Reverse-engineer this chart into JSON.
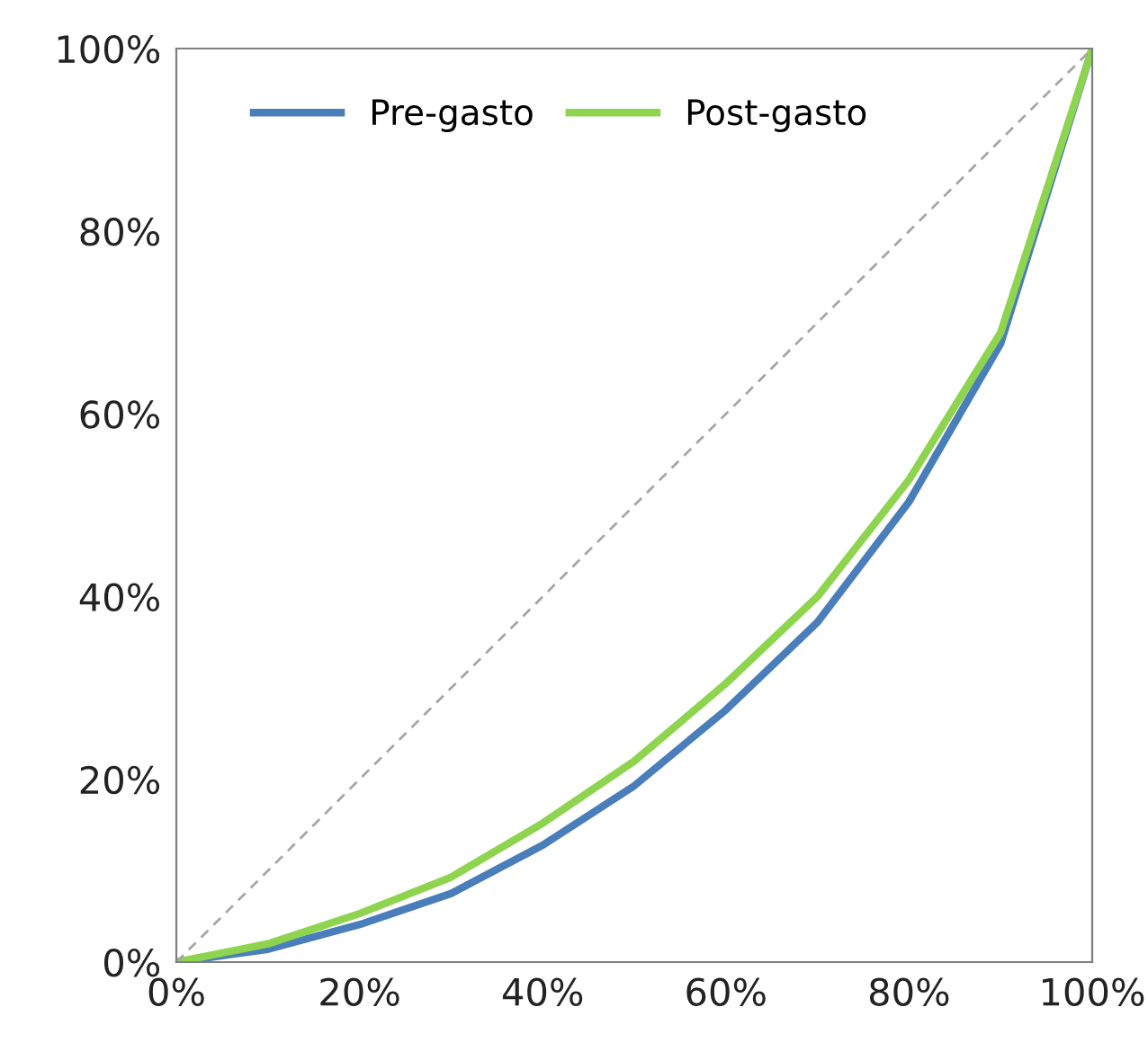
{
  "chart_data": {
    "type": "line",
    "x": [
      0,
      10,
      20,
      30,
      40,
      50,
      60,
      70,
      80,
      90,
      100
    ],
    "series": [
      {
        "name": "Pre-gasto",
        "color": "#4a7ebb",
        "values": [
          0,
          1.4,
          4.1,
          7.5,
          12.8,
          19.3,
          27.6,
          37.2,
          50.4,
          67.7,
          100
        ]
      },
      {
        "name": "Post-gasto",
        "color": "#8ed44f",
        "values": [
          0,
          2.0,
          5.3,
          9.3,
          15.2,
          22.0,
          30.5,
          40.0,
          52.8,
          68.9,
          100
        ]
      },
      {
        "color": "#a6a6a6",
        "line_style": "dashed",
        "x": [
          0,
          100
        ],
        "values": [
          0,
          100
        ]
      }
    ],
    "xlim": [
      0,
      100
    ],
    "ylim": [
      0,
      100
    ],
    "xticks": [
      {
        "value": 0,
        "label": "0%"
      },
      {
        "value": 20,
        "label": "20%"
      },
      {
        "value": 40,
        "label": "40%"
      },
      {
        "value": 60,
        "label": "60%"
      },
      {
        "value": 80,
        "label": "80%"
      },
      {
        "value": 100,
        "label": "100%"
      }
    ],
    "yticks": [
      {
        "value": 0,
        "label": "0%"
      },
      {
        "value": 20,
        "label": "20%"
      },
      {
        "value": 40,
        "label": "40%"
      },
      {
        "value": 60,
        "label": "60%"
      },
      {
        "value": 80,
        "label": "80%"
      },
      {
        "value": 100,
        "label": "100%"
      }
    ],
    "grid": false,
    "legend": "top left",
    "line_style": "solid",
    "marker": "none"
  }
}
